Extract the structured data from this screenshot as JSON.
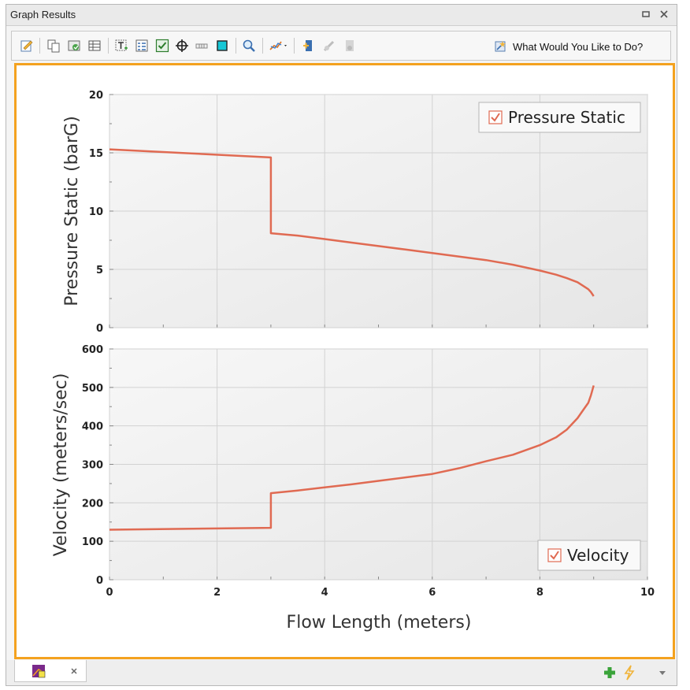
{
  "window": {
    "title": "Graph Results"
  },
  "toolbar": {
    "what_label": "What Would You Like to Do?"
  },
  "colors": {
    "line": "#e06a52",
    "accent": "#f4a21f"
  },
  "chart_data": [
    {
      "type": "line",
      "ylabel": "Pressure Static (barG)",
      "xlim": [
        0,
        10
      ],
      "ylim": [
        0,
        20
      ],
      "yticks": [
        0,
        5,
        10,
        15,
        20
      ],
      "grid": true,
      "legend": {
        "label": "Pressure Static",
        "position": "top-right",
        "checked": true
      },
      "series": [
        {
          "x": [
            0,
            3.0,
            3.0,
            3.5,
            4.0,
            4.5,
            5.0,
            5.5,
            6.0,
            6.5,
            7.0,
            7.5,
            8.0,
            8.3,
            8.5,
            8.7,
            8.8,
            8.9,
            8.95,
            9.0
          ],
          "y": [
            15.3,
            14.6,
            8.1,
            7.9,
            7.6,
            7.3,
            7.0,
            6.7,
            6.4,
            6.1,
            5.8,
            5.4,
            4.9,
            4.55,
            4.25,
            3.9,
            3.6,
            3.3,
            3.05,
            2.7
          ]
        }
      ]
    },
    {
      "type": "line",
      "xlabel": "Flow Length (meters)",
      "ylabel": "Velocity (meters/sec)",
      "xlim": [
        0,
        10
      ],
      "ylim": [
        0,
        600
      ],
      "xticks": [
        0,
        2,
        4,
        6,
        8,
        10
      ],
      "yticks": [
        0,
        100,
        200,
        300,
        400,
        500,
        600
      ],
      "grid": true,
      "legend": {
        "label": "Velocity",
        "position": "bottom-right",
        "checked": true
      },
      "series": [
        {
          "x": [
            0,
            3.0,
            3.0,
            3.5,
            4.0,
            4.5,
            5.0,
            5.5,
            6.0,
            6.5,
            7.0,
            7.5,
            8.0,
            8.3,
            8.5,
            8.7,
            8.8,
            8.9,
            8.95,
            9.0
          ],
          "y": [
            130,
            135,
            225,
            232,
            240,
            248,
            257,
            266,
            275,
            290,
            308,
            325,
            350,
            370,
            390,
            420,
            440,
            460,
            480,
            505
          ]
        }
      ]
    }
  ]
}
